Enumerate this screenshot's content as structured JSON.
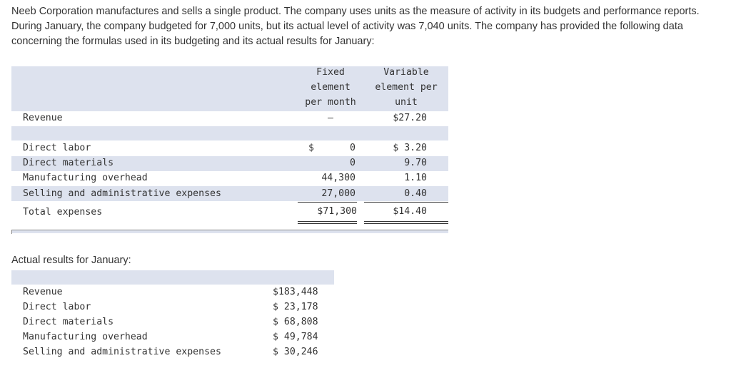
{
  "intro_text": "Neeb Corporation manufactures and sells a single product. The company uses units as the measure of activity in its budgets and performance reports. During January, the company budgeted for 7,000 units, but its actual level of activity was 7,040 units. The company has provided the following data concerning the formulas used in its budgeting and its actual results for January:",
  "budget_table": {
    "headers": {
      "fixed": [
        "Fixed",
        "element",
        "per month"
      ],
      "variable": [
        "Variable",
        "element per",
        "unit"
      ]
    },
    "rows": [
      {
        "label": "Revenue",
        "fixed": "–",
        "variable": "$27.20"
      },
      {
        "label": "Direct labor",
        "fixed_sign": "$",
        "fixed": "0",
        "variable": "$ 3.20"
      },
      {
        "label": "Direct materials",
        "fixed": "0",
        "variable": "9.70"
      },
      {
        "label": "Manufacturing overhead",
        "fixed": "44,300",
        "variable": "1.10"
      },
      {
        "label": "Selling and administrative expenses",
        "fixed": "27,000",
        "variable": "0.40"
      },
      {
        "label": "Total expenses",
        "fixed": "$71,300",
        "variable": "$14.40"
      }
    ]
  },
  "actual_title": "Actual results for January:",
  "actual_table": {
    "rows": [
      {
        "label": "Revenue",
        "value": "$183,448"
      },
      {
        "label": "Direct labor",
        "value": "$ 23,178"
      },
      {
        "label": "Direct materials",
        "value": "$ 68,808"
      },
      {
        "label": "Manufacturing overhead",
        "value": "$ 49,784"
      },
      {
        "label": "Selling and administrative expenses",
        "value": "$ 30,246"
      }
    ]
  }
}
